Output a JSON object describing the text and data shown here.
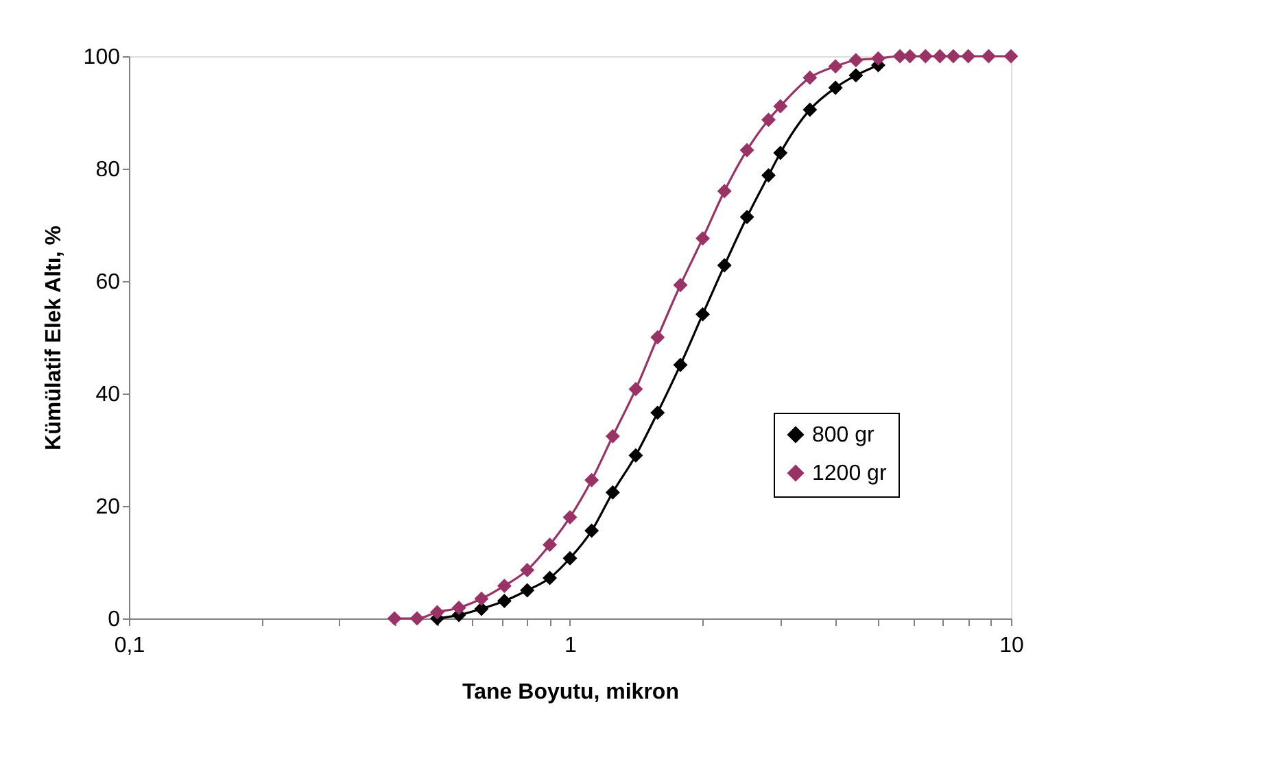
{
  "chart_data": {
    "type": "line",
    "xlabel": "Tane Boyutu, mikron",
    "ylabel": "Kümülatif Elek Altı, %",
    "x": [
      0.4,
      0.45,
      0.5,
      0.56,
      0.63,
      0.71,
      0.8,
      0.9,
      1,
      1.12,
      1.25,
      1.41,
      1.58,
      1.78,
      2,
      2.24,
      2.52,
      2.82,
      3,
      3.5,
      4,
      4.45,
      5,
      5.6,
      5.9,
      6.4,
      6.9,
      7.4,
      8,
      8.9,
      10
    ],
    "series": [
      {
        "name": "800 gr",
        "color": "#000000",
        "values": [
          null,
          null,
          0,
          0.6,
          1.7,
          3.1,
          5,
          7.2,
          10.7,
          15.6,
          22.4,
          29,
          36.6,
          45.1,
          54.1,
          62.8,
          71.4,
          78.8,
          82.8,
          90.5,
          94.4,
          96.6,
          98.4,
          null,
          null,
          null,
          null,
          null,
          null,
          null,
          null
        ]
      },
      {
        "name": "1200 gr",
        "color": "#993366",
        "values": [
          0,
          0,
          1.1,
          1.9,
          3.5,
          5.8,
          8.6,
          13.1,
          18,
          24.6,
          32.4,
          40.8,
          50,
          59.3,
          67.6,
          76,
          83.3,
          88.7,
          91.1,
          96.2,
          98.2,
          99.3,
          99.6,
          100,
          100,
          100,
          100,
          100,
          100,
          100,
          100
        ]
      }
    ],
    "log": "x",
    "xlim": [
      0.1,
      10
    ],
    "xticks": [
      {
        "value": 0.1,
        "label": "0,1"
      },
      {
        "value": 0.2,
        "label": null
      },
      {
        "value": 0.3,
        "label": null
      },
      {
        "value": 0.4,
        "label": null
      },
      {
        "value": 0.5,
        "label": null
      },
      {
        "value": 0.6,
        "label": null
      },
      {
        "value": 0.7,
        "label": null
      },
      {
        "value": 0.8,
        "label": null
      },
      {
        "value": 0.9,
        "label": null
      },
      1,
      {
        "value": 2,
        "label": null
      },
      {
        "value": 3,
        "label": null
      },
      {
        "value": 4,
        "label": null
      },
      {
        "value": 5,
        "label": null
      },
      {
        "value": 6,
        "label": null
      },
      {
        "value": 7,
        "label": null
      },
      {
        "value": 8,
        "label": null
      },
      {
        "value": 9,
        "label": null
      },
      10
    ],
    "ylim": [
      0,
      100
    ],
    "yticks": [
      0,
      20,
      40,
      60,
      80,
      100
    ],
    "grid": false,
    "legend": "right",
    "marker": "diamond",
    "line_style": "solid"
  }
}
